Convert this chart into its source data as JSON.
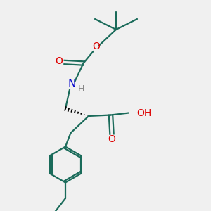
{
  "bg_color": "#f0f0f0",
  "atom_colors": {
    "O": "#dd0000",
    "N": "#0000cc",
    "C": "#000000",
    "H_label": "#888888"
  },
  "bond_color": "#1a6b5a",
  "figsize": [
    3.0,
    3.0
  ],
  "dpi": 100
}
